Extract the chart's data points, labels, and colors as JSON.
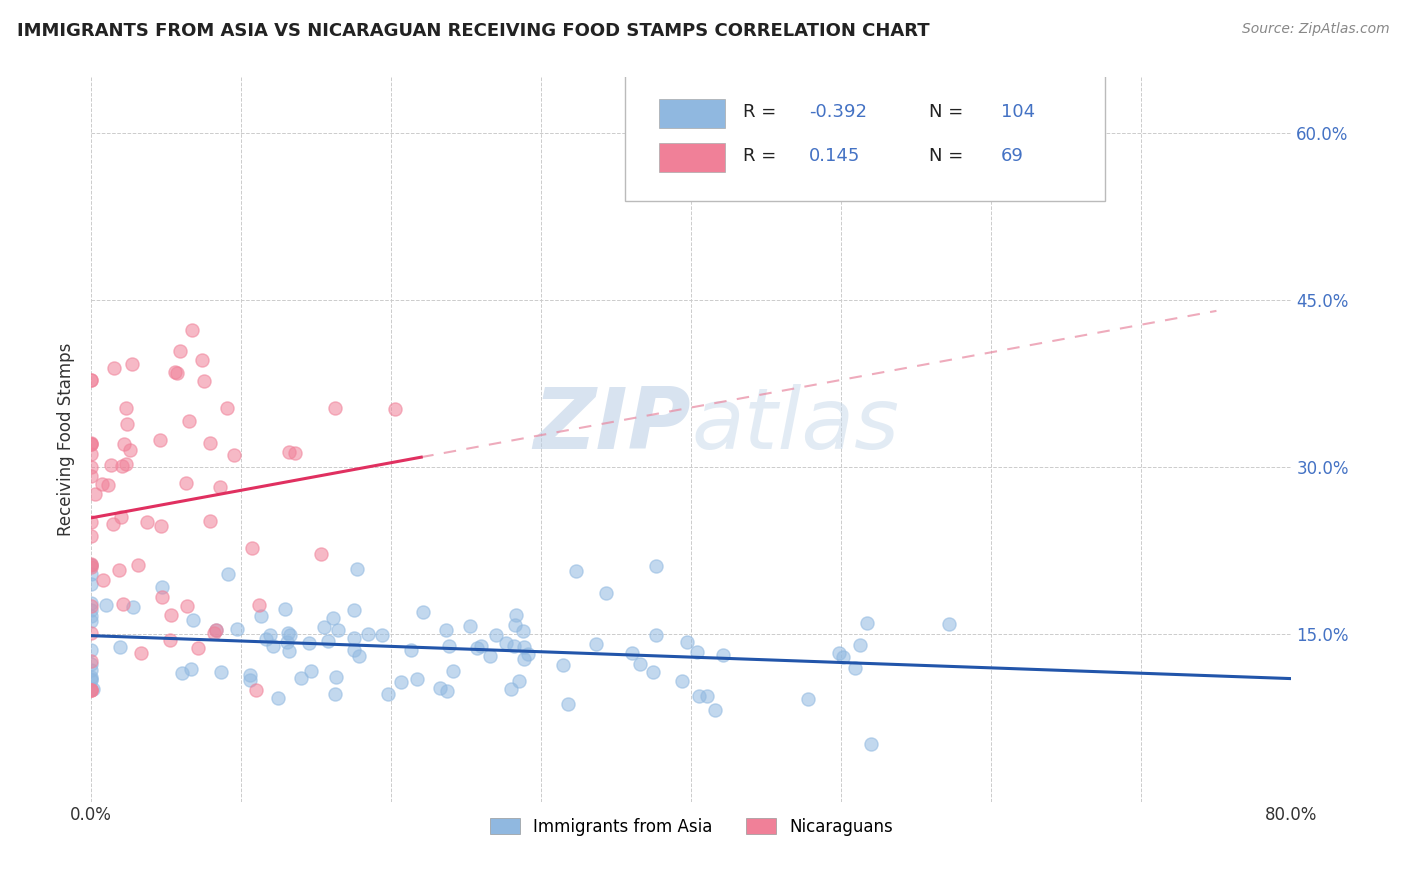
{
  "title": "IMMIGRANTS FROM ASIA VS NICARAGUAN RECEIVING FOOD STAMPS CORRELATION CHART",
  "source": "Source: ZipAtlas.com",
  "ylabel": "Receiving Food Stamps",
  "xlim": [
    0.0,
    0.8
  ],
  "ylim": [
    0.0,
    0.65
  ],
  "xtick_positions": [
    0.0,
    0.1,
    0.2,
    0.3,
    0.4,
    0.5,
    0.6,
    0.7,
    0.8
  ],
  "xticklabels": [
    "0.0%",
    "",
    "",
    "",
    "",
    "",
    "",
    "",
    "80.0%"
  ],
  "ytick_positions": [
    0.15,
    0.3,
    0.45,
    0.6
  ],
  "ytick_labels": [
    "15.0%",
    "30.0%",
    "45.0%",
    "60.0%"
  ],
  "blue_color": "#90B8E0",
  "pink_color": "#F08098",
  "blue_line_color": "#2255AA",
  "pink_line_color": "#E03060",
  "pink_dash_color": "#E888A0",
  "watermark_color": "#D8E8F4",
  "watermark_text": "ZIPAtlas",
  "background_color": "#FFFFFF",
  "grid_color": "#CCCCCC",
  "blue_R": -0.392,
  "blue_N": 104,
  "pink_R": 0.145,
  "pink_N": 69,
  "title_color": "#222222",
  "source_color": "#888888",
  "ylabel_color": "#333333",
  "right_ytick_color": "#4472C4",
  "legend_R_color": "#4472C4",
  "legend_N_color": "#4472C4",
  "legend_label_color": "#222222",
  "bottom_legend_label1": "Immigrants from Asia",
  "bottom_legend_label2": "Nicaraguans"
}
